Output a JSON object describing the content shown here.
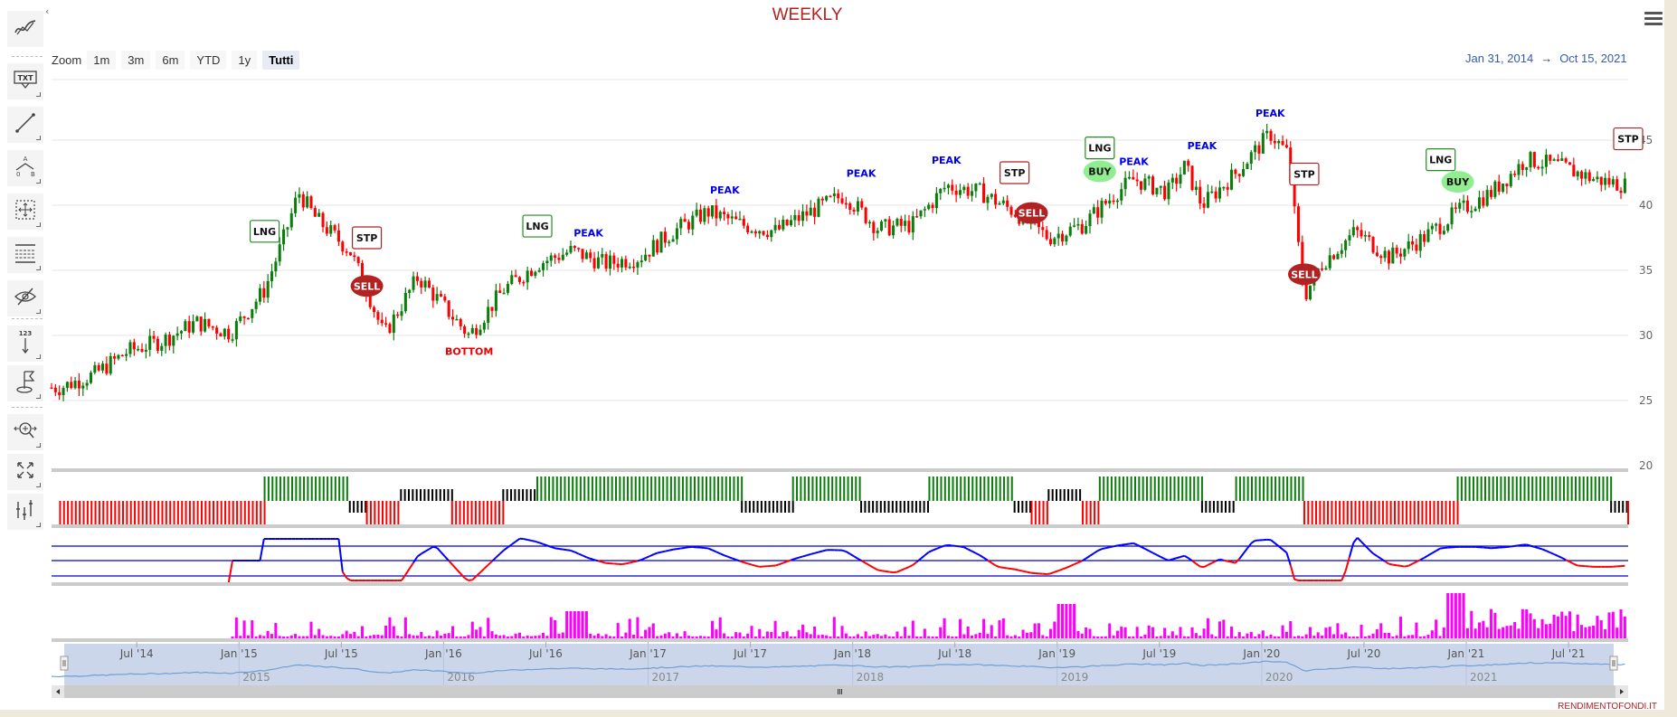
{
  "header": {
    "title": "WEEKLY",
    "menu_icon": "hamburger-menu-icon"
  },
  "zoom": {
    "label": "Zoom",
    "buttons": [
      {
        "label": "1m",
        "active": false
      },
      {
        "label": "3m",
        "active": false
      },
      {
        "label": "6m",
        "active": false
      },
      {
        "label": "YTD",
        "active": false
      },
      {
        "label": "1y",
        "active": false
      },
      {
        "label": "Tutti",
        "active": true
      }
    ]
  },
  "range": {
    "from": "Jan 31, 2014",
    "arrow": "→",
    "to": "Oct 15, 2021"
  },
  "toolbar": {
    "items": [
      {
        "name": "indicators-icon",
        "glyph": "indicators"
      },
      {
        "name": "text-annotation-icon",
        "glyph": "TXT"
      },
      {
        "name": "line-drawing-icon",
        "glyph": "line"
      },
      {
        "name": "elliott-wave-icon",
        "glyph": "abc"
      },
      {
        "name": "measure-icon",
        "glyph": "measure"
      },
      {
        "name": "fibonacci-icon",
        "glyph": "fib"
      },
      {
        "name": "hide-annotations-icon",
        "glyph": "eye"
      },
      {
        "name": "vertical-counter-icon",
        "glyph": "123"
      },
      {
        "name": "flag-icon",
        "glyph": "flag"
      },
      {
        "name": "zoom-change-icon",
        "glyph": "zoom"
      },
      {
        "name": "fullscreen-icon",
        "glyph": "fullscreen"
      },
      {
        "name": "price-indicator-icon",
        "glyph": "price"
      }
    ],
    "collapse_glyph": "‹"
  },
  "colors": {
    "up": "#0a7d0a",
    "down": "#ff0000",
    "peak": "#0000ee",
    "bottom": "#ee0000",
    "sell_fill": "#b22222",
    "buy_fill": "#90ee90",
    "lng_border": "#228b22",
    "stp_border": "#b22222",
    "volume": "#ff00ff",
    "osc_blue": "#0000ff",
    "osc_red": "#ff0000",
    "title": "#b22222",
    "range_text": "#335cad",
    "navigator_fill": "#ccd6eb",
    "navigator_line": "#6e9fd6"
  },
  "footer": {
    "brand": "RENDIMENTOFONDI.IT"
  },
  "chart_data": {
    "type": "candlestick",
    "title": "WEEKLY",
    "period": {
      "from": "Jan 31, 2014",
      "to": "Oct 15, 2021"
    },
    "y_axis": {
      "ticks": [
        20,
        25,
        30,
        35,
        40,
        45
      ],
      "range": [
        20,
        48
      ],
      "position": "right",
      "grid": true
    },
    "x_axis_navigator": {
      "ticks": [
        "Jul '14",
        "Jan '15",
        "Jul '15",
        "Jan '16",
        "Jul '16",
        "Jan '17",
        "Jul '17",
        "Jan '18",
        "Jul '18",
        "Jan '19",
        "Jul '19",
        "Jan '20",
        "Jul '20",
        "Jan '21",
        "Jul '21"
      ],
      "years": [
        "2015",
        "2016",
        "2017",
        "2018",
        "2019",
        "2020",
        "2021"
      ]
    },
    "price_path": [
      {
        "date": "2014-02",
        "close": 26.0
      },
      {
        "date": "2014-04",
        "close": 27.0
      },
      {
        "date": "2014-06",
        "close": 28.8
      },
      {
        "date": "2014-08",
        "close": 29.6
      },
      {
        "date": "2014-10",
        "close": 31.0
      },
      {
        "date": "2014-12",
        "close": 30.2
      },
      {
        "date": "2015-02",
        "close": 33.5
      },
      {
        "date": "2015-03",
        "close": 37.0
      },
      {
        "date": "2015-04",
        "close": 41.0
      },
      {
        "date": "2015-05",
        "close": 39.0
      },
      {
        "date": "2015-07",
        "close": 36.5
      },
      {
        "date": "2015-08",
        "close": 33.5
      },
      {
        "date": "2015-09",
        "close": 30.0
      },
      {
        "date": "2015-11",
        "close": 34.5
      },
      {
        "date": "2016-01",
        "close": 31.5
      },
      {
        "date": "2016-02",
        "close": 30.0
      },
      {
        "date": "2016-04",
        "close": 33.5
      },
      {
        "date": "2016-06",
        "close": 35.5
      },
      {
        "date": "2016-08",
        "close": 36.5
      },
      {
        "date": "2016-10",
        "close": 35.5
      },
      {
        "date": "2016-12",
        "close": 36.0
      },
      {
        "date": "2017-02",
        "close": 38.0
      },
      {
        "date": "2017-04",
        "close": 39.5
      },
      {
        "date": "2017-06",
        "close": 38.5
      },
      {
        "date": "2017-08",
        "close": 38.0
      },
      {
        "date": "2017-10",
        "close": 39.5
      },
      {
        "date": "2017-12",
        "close": 40.8
      },
      {
        "date": "2018-02",
        "close": 38.2
      },
      {
        "date": "2018-04",
        "close": 38.5
      },
      {
        "date": "2018-06",
        "close": 41.5
      },
      {
        "date": "2018-08",
        "close": 41.0
      },
      {
        "date": "2018-10",
        "close": 39.5
      },
      {
        "date": "2018-12",
        "close": 37.5
      },
      {
        "date": "2019-02",
        "close": 38.5
      },
      {
        "date": "2019-04",
        "close": 41.0
      },
      {
        "date": "2019-05",
        "close": 42.0
      },
      {
        "date": "2019-07",
        "close": 41.0
      },
      {
        "date": "2019-08",
        "close": 43.0
      },
      {
        "date": "2019-09",
        "close": 40.0
      },
      {
        "date": "2019-11",
        "close": 42.5
      },
      {
        "date": "2020-01",
        "close": 45.5
      },
      {
        "date": "2020-02",
        "close": 44.0
      },
      {
        "date": "2020-03",
        "close": 33.0
      },
      {
        "date": "2020-04",
        "close": 35.5
      },
      {
        "date": "2020-06",
        "close": 38.0
      },
      {
        "date": "2020-08",
        "close": 36.0
      },
      {
        "date": "2020-10",
        "close": 37.5
      },
      {
        "date": "2020-12",
        "close": 39.5
      },
      {
        "date": "2021-02",
        "close": 41.0
      },
      {
        "date": "2021-04",
        "close": 43.5
      },
      {
        "date": "2021-06",
        "close": 43.0
      },
      {
        "date": "2021-08",
        "close": 42.0
      },
      {
        "date": "2021-10",
        "close": 41.5
      }
    ],
    "annotations": [
      {
        "type": "LNG",
        "date": "2015-02",
        "y": 38.0
      },
      {
        "type": "STP",
        "date": "2015-08",
        "y": 37.5
      },
      {
        "type": "SELL",
        "date": "2015-08",
        "y": 33.8
      },
      {
        "type": "BOTTOM",
        "date": "2016-02",
        "y": 28.5
      },
      {
        "type": "LNG",
        "date": "2016-06",
        "y": 38.4
      },
      {
        "type": "PEAK",
        "date": "2016-09",
        "y": 37.6
      },
      {
        "type": "PEAK",
        "date": "2017-05",
        "y": 40.9
      },
      {
        "type": "PEAK",
        "date": "2018-01",
        "y": 42.2
      },
      {
        "type": "PEAK",
        "date": "2018-06",
        "y": 43.2
      },
      {
        "type": "STP",
        "date": "2018-10",
        "y": 42.5
      },
      {
        "type": "SELL",
        "date": "2018-11",
        "y": 39.4
      },
      {
        "type": "LNG",
        "date": "2019-03",
        "y": 44.4
      },
      {
        "type": "BUY",
        "date": "2019-03",
        "y": 42.6
      },
      {
        "type": "PEAK",
        "date": "2019-05",
        "y": 43.1
      },
      {
        "type": "PEAK",
        "date": "2019-09",
        "y": 44.3
      },
      {
        "type": "PEAK",
        "date": "2020-01",
        "y": 46.8
      },
      {
        "type": "STP",
        "date": "2020-03",
        "y": 42.4
      },
      {
        "type": "SELL",
        "date": "2020-03",
        "y": 34.7
      },
      {
        "type": "LNG",
        "date": "2020-11",
        "y": 43.5
      },
      {
        "type": "BUY",
        "date": "2020-12",
        "y": 41.8
      },
      {
        "type": "STP",
        "date": "2021-10",
        "y": 45.1
      }
    ],
    "signal_panel": {
      "levels": [
        "green (long)",
        "black (neutral)",
        "red (short)"
      ],
      "segments": [
        {
          "from": "2014-02",
          "to": "2015-02",
          "state": "red"
        },
        {
          "from": "2015-02",
          "to": "2015-07",
          "state": "green"
        },
        {
          "from": "2015-07",
          "to": "2015-08",
          "state": "black-low"
        },
        {
          "from": "2015-08",
          "to": "2015-10",
          "state": "red"
        },
        {
          "from": "2015-10",
          "to": "2016-01",
          "state": "black-high"
        },
        {
          "from": "2016-01",
          "to": "2016-04",
          "state": "red"
        },
        {
          "from": "2016-04",
          "to": "2016-06",
          "state": "black-high"
        },
        {
          "from": "2016-06",
          "to": "2017-06",
          "state": "green"
        },
        {
          "from": "2017-06",
          "to": "2017-09",
          "state": "black-low"
        },
        {
          "from": "2017-09",
          "to": "2018-01",
          "state": "green"
        },
        {
          "from": "2018-01",
          "to": "2018-05",
          "state": "black-low"
        },
        {
          "from": "2018-05",
          "to": "2018-10",
          "state": "green"
        },
        {
          "from": "2018-10",
          "to": "2018-11",
          "state": "black-low"
        },
        {
          "from": "2018-11",
          "to": "2018-12",
          "state": "red"
        },
        {
          "from": "2018-12",
          "to": "2019-02",
          "state": "black-high"
        },
        {
          "from": "2019-02",
          "to": "2019-03",
          "state": "red"
        },
        {
          "from": "2019-03",
          "to": "2019-09",
          "state": "green"
        },
        {
          "from": "2019-09",
          "to": "2019-11",
          "state": "black-low"
        },
        {
          "from": "2019-11",
          "to": "2020-03",
          "state": "green"
        },
        {
          "from": "2020-03",
          "to": "2020-12",
          "state": "red"
        },
        {
          "from": "2020-12",
          "to": "2021-09",
          "state": "green"
        },
        {
          "from": "2021-09",
          "to": "2021-10",
          "state": "black-low"
        },
        {
          "from": "2021-10",
          "to": "2021-10",
          "state": "red"
        }
      ]
    },
    "oscillator": {
      "series": [
        "blue (above mid)",
        "red (below mid)"
      ],
      "bands": 3
    },
    "volume": {
      "color": "#ff00ff",
      "notes": "weekly volume histogram, spikes in early 2019 and late 2020/2021"
    }
  }
}
